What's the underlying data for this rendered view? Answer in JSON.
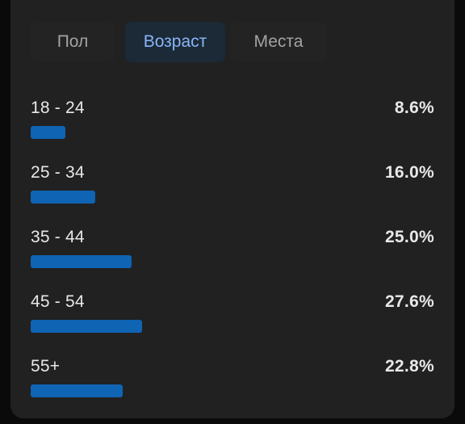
{
  "tabs": [
    {
      "label": "Пол",
      "active": false
    },
    {
      "label": "Возраст",
      "active": true
    },
    {
      "label": "Места",
      "active": false
    }
  ],
  "colors": {
    "accent": "#8ab4f8",
    "bar": "#0f64b4",
    "card": "#212121",
    "text": "#e8e8e8",
    "tab_inactive_text": "#a3a3a3"
  },
  "chart_data": {
    "type": "bar",
    "categories": [
      "18 - 24",
      "25 - 34",
      "35 - 44",
      "45 - 54",
      "55+"
    ],
    "values": [
      8.6,
      16.0,
      25.0,
      27.6,
      22.8
    ],
    "value_labels": [
      "8.6%",
      "16.0%",
      "25.0%",
      "27.6%",
      "22.8%"
    ],
    "ylim": [
      0,
      100
    ]
  }
}
